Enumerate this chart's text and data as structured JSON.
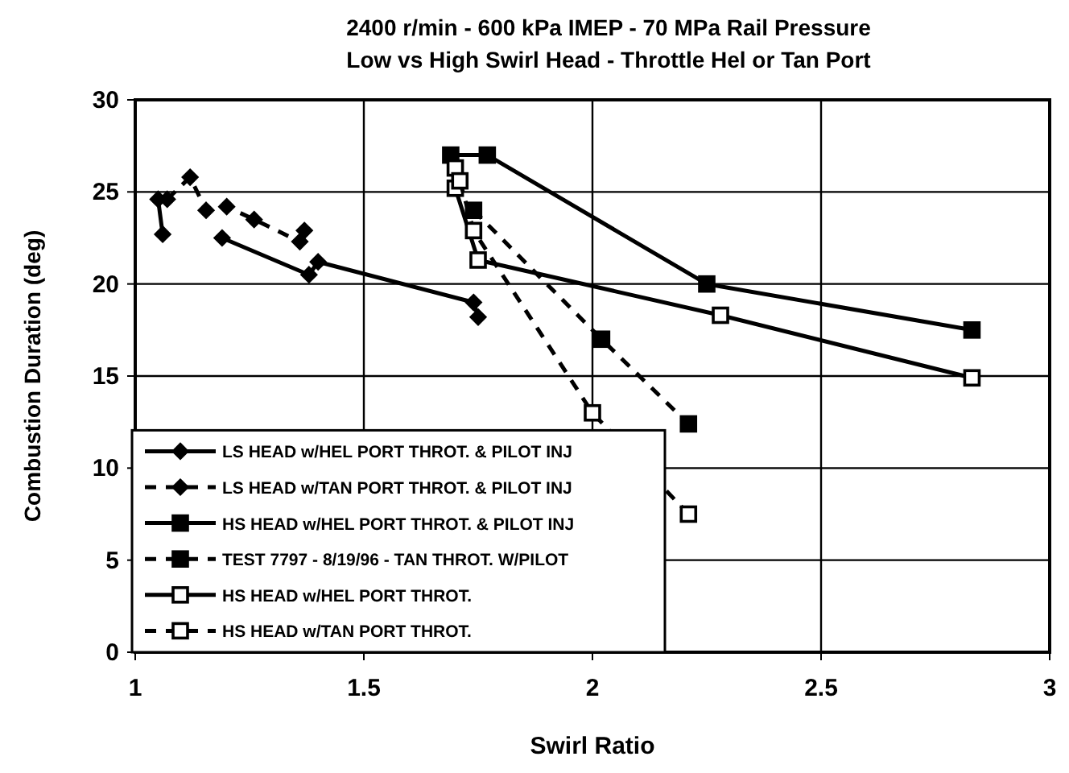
{
  "chart_data": {
    "type": "line",
    "title": "2400 r/min - 600 kPa IMEP - 70 MPa Rail Pressure",
    "subtitle": "Low vs High Swirl Head - Throttle Hel or Tan Port",
    "xlabel": "Swirl Ratio",
    "ylabel": "Combustion Duration (deg)",
    "xlim": [
      1,
      3
    ],
    "xticks": [
      1,
      1.5,
      2,
      2.5,
      3
    ],
    "ylim": [
      0,
      30
    ],
    "yticks": [
      0,
      5,
      10,
      15,
      20,
      25,
      30
    ],
    "grid": true,
    "legend": "bottom left",
    "series": [
      {
        "name": "LS HEAD w/HEL PORT THROT. & PILOT INJ",
        "color": "#000000",
        "marker": "diamond",
        "line_style": "solid",
        "x": [
          1.05,
          1.06,
          1.12,
          1.19,
          1.38,
          1.4,
          1.74,
          1.75
        ],
        "values": [
          24.6,
          22.7,
          null,
          22.5,
          20.5,
          21.2,
          19.0,
          18.2
        ]
      },
      {
        "name": "LS HEAD w/TAN PORT THROT. & PILOT INJ",
        "color": "#000000",
        "marker": "diamond",
        "line_style": "dashed",
        "x": [
          1.07,
          1.12,
          1.155,
          1.2,
          1.26,
          1.36,
          1.37
        ],
        "values": [
          24.6,
          25.8,
          24.0,
          24.2,
          23.5,
          22.3,
          22.9
        ]
      },
      {
        "name": "HS HEAD w/HEL PORT THROT. & PILOT INJ",
        "color": "#000000",
        "marker": "square",
        "line_style": "solid",
        "x": [
          1.69,
          1.77,
          2.25,
          2.83
        ],
        "values": [
          27.0,
          27.0,
          20.0,
          17.5
        ]
      },
      {
        "name": "TEST 7797 - 8/19/96 - TAN THROT. W/PILOT",
        "color": "#000000",
        "marker": "square",
        "line_style": "dashed",
        "x": [
          1.74,
          2.02,
          2.21
        ],
        "values": [
          24.0,
          17.0,
          12.4
        ]
      },
      {
        "name": "HS HEAD w/HEL PORT THROT.",
        "color": "#000000",
        "marker": "square",
        "line_style": "solid",
        "x": [
          1.7,
          1.7,
          1.75,
          2.28,
          2.83
        ],
        "values": [
          26.3,
          25.2,
          21.3,
          18.3,
          14.9
        ]
      },
      {
        "name": "HS HEAD w/TAN PORT THROT.",
        "color": "#000000",
        "marker": "square",
        "line_style": "dashed",
        "x": [
          1.71,
          1.74,
          2.0,
          2.21
        ],
        "values": [
          25.6,
          22.9,
          13.0,
          7.5
        ]
      }
    ]
  }
}
